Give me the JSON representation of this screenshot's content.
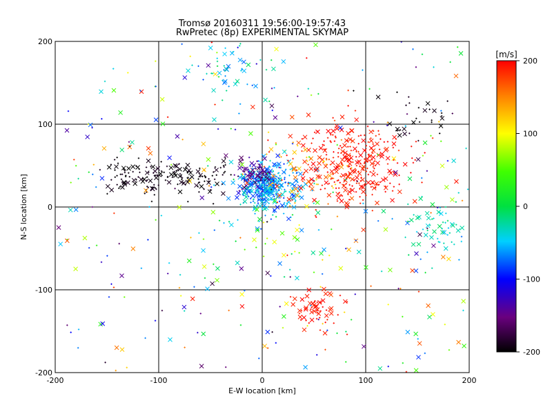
{
  "chart_data": {
    "type": "scatter",
    "title": "Tromsø 20160311 19:56:00-19:57:43",
    "subtitle": "RwPretec (8p) EXPERIMENTAL SKYMAP",
    "xlabel": "E-W location [km]",
    "ylabel": "N-S location [km]",
    "xlim": [
      -200,
      200
    ],
    "ylim": [
      -200,
      200
    ],
    "xticks": [
      "-200",
      "-100",
      "0",
      "100",
      "200"
    ],
    "yticks": [
      "-200",
      "-100",
      "0",
      "100",
      "200"
    ],
    "grid": true,
    "markers": [
      "x (large)",
      "+ (small)"
    ],
    "colorbar": {
      "label": "[m/s]",
      "range": [
        -200,
        200
      ],
      "ticks": [
        "-200",
        "-100",
        "0",
        "100",
        "200"
      ],
      "colormap": "black-purple-blue-cyan-green-yellow-red"
    },
    "clusters": [
      {
        "region": "center",
        "cx": 5,
        "cy": 25,
        "spread": 14,
        "count": 380,
        "velocity": -60,
        "vspread": 35
      },
      {
        "region": "center-north",
        "cx": -5,
        "cy": 40,
        "spread": 10,
        "count": 80,
        "velocity": -150,
        "vspread": 25
      },
      {
        "region": "north-east",
        "cx": 90,
        "cy": 50,
        "spread": 25,
        "count": 300,
        "velocity": 195,
        "vspread": 15
      },
      {
        "region": "east-inner",
        "cx": 45,
        "cy": 40,
        "spread": 25,
        "count": 90,
        "velocity": 160,
        "vspread": 50
      },
      {
        "region": "west-band",
        "cx": -90,
        "cy": 38,
        "spread": 50,
        "count": 170,
        "velocity": -195,
        "vspread": 10
      },
      {
        "region": "south-east",
        "cx": 55,
        "cy": -120,
        "spread": 12,
        "count": 60,
        "velocity": 195,
        "vspread": 10
      },
      {
        "region": "north-west-arc",
        "cx": -30,
        "cy": 160,
        "spread": 20,
        "count": 50,
        "velocity": -40,
        "vspread": 50
      },
      {
        "region": "east-edge",
        "cx": 170,
        "cy": -20,
        "spread": 16,
        "count": 50,
        "velocity": -30,
        "vspread": 25
      },
      {
        "region": "north-east-edge",
        "cx": 150,
        "cy": 110,
        "spread": 20,
        "count": 30,
        "velocity": -195,
        "vspread": 10
      },
      {
        "region": "center-south",
        "cx": 10,
        "cy": -30,
        "spread": 40,
        "count": 60,
        "velocity": 20,
        "vspread": 100
      },
      {
        "region": "scattered",
        "cx": 0,
        "cy": 0,
        "spread": 200,
        "count": 320,
        "velocity": 0,
        "vspread": 200
      }
    ]
  }
}
